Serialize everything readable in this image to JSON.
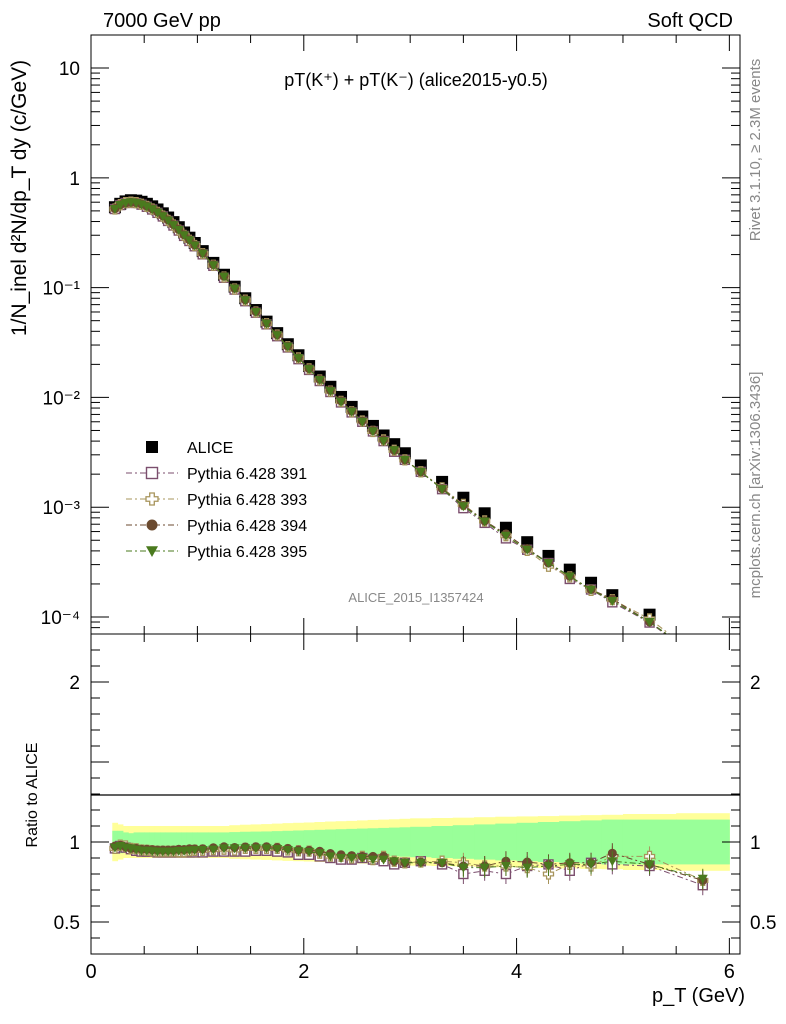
{
  "header": {
    "left": "7000 GeV pp",
    "right": "Soft QCD"
  },
  "side_text": {
    "rivet": "Rivet 3.1.10, ≥ 2.3M events",
    "mcplots": "mcplots.cern.ch [arXiv:1306.3436]"
  },
  "analysis_label": "ALICE_2015_I1357424",
  "chart_data": [
    {
      "type": "scatter",
      "panel": "main",
      "title": "pT(K⁺) + pT(K⁻) (alice2015-y0.5)",
      "ylabel": "1/N_inel d²N/dp_T dy (c/GeV)",
      "xlabel": "p_T (GeV)",
      "xlim": [
        0,
        6.1
      ],
      "ylim": [
        7e-05,
        20
      ],
      "yscale": "log",
      "x_ticks": [
        "0",
        "2",
        "4",
        "6"
      ],
      "y_ticks": [
        "10⁻⁴",
        "10⁻³",
        "10⁻²",
        "10⁻¹",
        "1",
        "10"
      ],
      "legend_position": "center-left",
      "x": [
        0.225,
        0.275,
        0.325,
        0.375,
        0.425,
        0.475,
        0.525,
        0.575,
        0.625,
        0.675,
        0.725,
        0.775,
        0.825,
        0.875,
        0.925,
        0.975,
        1.05,
        1.15,
        1.25,
        1.35,
        1.45,
        1.55,
        1.65,
        1.75,
        1.85,
        1.95,
        2.05,
        2.15,
        2.25,
        2.35,
        2.45,
        2.55,
        2.65,
        2.75,
        2.85,
        2.95,
        3.1,
        3.3,
        3.5,
        3.7,
        3.9,
        4.1,
        4.3,
        4.5,
        4.7,
        4.9,
        5.25,
        5.75
      ],
      "series": [
        {
          "name": "ALICE",
          "color": "#000000",
          "marker": "square-filled",
          "values": [
            0.54,
            0.58,
            0.61,
            0.625,
            0.62,
            0.605,
            0.58,
            0.55,
            0.515,
            0.475,
            0.435,
            0.395,
            0.355,
            0.318,
            0.285,
            0.255,
            0.215,
            0.168,
            0.131,
            0.102,
            0.08,
            0.0625,
            0.049,
            0.0385,
            0.0305,
            0.0242,
            0.0193,
            0.0155,
            0.0125,
            0.0101,
            0.0082,
            0.0067,
            0.0055,
            0.0045,
            0.00375,
            0.0031,
            0.0024,
            0.0017,
            0.00122,
            0.00088,
            0.00065,
            0.00048,
            0.00036,
            0.00027,
            0.000205,
            0.000158,
            0.000105,
            5.4e-05
          ]
        },
        {
          "name": "Pythia 6.428 391",
          "color": "#7B4E6D",
          "marker": "square-open",
          "values": [
            0.52,
            0.565,
            0.59,
            0.6,
            0.59,
            0.57,
            0.545,
            0.515,
            0.48,
            0.445,
            0.405,
            0.368,
            0.331,
            0.296,
            0.266,
            0.238,
            0.201,
            0.158,
            0.123,
            0.096,
            0.0752,
            0.0591,
            0.0463,
            0.0361,
            0.0285,
            0.0223,
            0.0178,
            0.0141,
            0.0112,
            0.009,
            0.0073,
            0.006,
            0.0049,
            0.004,
            0.0032,
            0.0027,
            0.0021,
            0.00146,
            0.00098,
            0.00072,
            0.00052,
            0.00041,
            0.00031,
            0.000222,
            0.000178,
            0.000136,
            8.9e-05,
            3.95e-05
          ]
        },
        {
          "name": "Pythia 6.428 393",
          "color": "#A7945B",
          "marker": "cross-open",
          "values": [
            0.52,
            0.57,
            0.595,
            0.6,
            0.594,
            0.575,
            0.55,
            0.52,
            0.485,
            0.448,
            0.41,
            0.372,
            0.334,
            0.299,
            0.27,
            0.242,
            0.204,
            0.16,
            0.125,
            0.097,
            0.077,
            0.06,
            0.047,
            0.037,
            0.029,
            0.0229,
            0.0182,
            0.0144,
            0.0114,
            0.0092,
            0.0074,
            0.0061,
            0.0049,
            0.0041,
            0.0033,
            0.0027,
            0.0021,
            0.0015,
            0.00106,
            0.00075,
            0.00055,
            0.000405,
            0.00029,
            0.000232,
            0.000175,
            0.000144,
            9.6e-05,
            4.1e-05
          ]
        },
        {
          "name": "Pythia 6.428 394",
          "color": "#6B4A2F",
          "marker": "circle-filled",
          "values": [
            0.525,
            0.57,
            0.59,
            0.6,
            0.595,
            0.578,
            0.553,
            0.523,
            0.489,
            0.451,
            0.413,
            0.375,
            0.339,
            0.303,
            0.273,
            0.244,
            0.206,
            0.162,
            0.127,
            0.0985,
            0.0775,
            0.0606,
            0.0475,
            0.0372,
            0.0293,
            0.023,
            0.0183,
            0.0146,
            0.0116,
            0.0093,
            0.0075,
            0.0061,
            0.005,
            0.0041,
            0.0033,
            0.0027,
            0.0021,
            0.00148,
            0.00104,
            0.00075,
            0.00057,
            0.00042,
            0.00031,
            0.000235,
            0.000178,
            0.000146,
            9e-05,
            4.1e-05
          ]
        },
        {
          "name": "Pythia 6.428 395",
          "color": "#4A7A1E",
          "marker": "triangle-down-filled",
          "values": [
            0.52,
            0.565,
            0.59,
            0.6,
            0.59,
            0.572,
            0.548,
            0.518,
            0.484,
            0.447,
            0.409,
            0.371,
            0.335,
            0.3,
            0.27,
            0.242,
            0.204,
            0.16,
            0.126,
            0.098,
            0.0768,
            0.06,
            0.047,
            0.0368,
            0.029,
            0.0228,
            0.0181,
            0.0144,
            0.0114,
            0.0091,
            0.0074,
            0.006,
            0.0049,
            0.004,
            0.0033,
            0.0027,
            0.0021,
            0.00146,
            0.00102,
            0.00074,
            0.00055,
            0.00041,
            0.00031,
            0.000234,
            0.000177,
            0.00014,
            9e-05,
            4.1e-05
          ]
        }
      ]
    },
    {
      "type": "scatter",
      "panel": "ratio",
      "ylabel": "Ratio to ALICE",
      "xlabel": "p_T (GeV)",
      "xlim": [
        0,
        6.1
      ],
      "ylim": [
        0.3,
        2.3
      ],
      "x_ticks": [
        "0",
        "2",
        "4",
        "6"
      ],
      "y_ticks": [
        "0.5",
        "1",
        "2"
      ],
      "band_x": [
        0.2,
        0.25,
        0.3,
        0.35,
        0.4,
        0.45,
        0.5,
        0.55,
        0.6,
        0.65,
        0.7,
        0.75,
        0.8,
        0.85,
        0.9,
        0.95,
        1.0,
        1.1,
        1.2,
        1.3,
        1.4,
        1.5,
        1.6,
        1.7,
        1.8,
        1.9,
        2.0,
        2.1,
        2.2,
        2.3,
        2.4,
        2.5,
        2.6,
        2.7,
        2.8,
        2.9,
        3.0,
        3.2,
        3.4,
        3.6,
        3.8,
        4.0,
        4.2,
        4.4,
        4.6,
        4.8,
        5.0,
        5.5,
        6.0
      ],
      "band_stat_syst": {
        "green_half_width": [
          0.07,
          0.07,
          0.06,
          0.055,
          0.06,
          0.06,
          0.06,
          0.06,
          0.06,
          0.06,
          0.06,
          0.06,
          0.06,
          0.06,
          0.06,
          0.06,
          0.06,
          0.06,
          0.06,
          0.062,
          0.064,
          0.065,
          0.066,
          0.068,
          0.07,
          0.072,
          0.074,
          0.076,
          0.078,
          0.08,
          0.082,
          0.084,
          0.086,
          0.088,
          0.09,
          0.092,
          0.095,
          0.1,
          0.105,
          0.11,
          0.115,
          0.12,
          0.125,
          0.13,
          0.135,
          0.14,
          0.14,
          0.14
        ],
        "yellow_half_width": [
          0.12,
          0.11,
          0.1,
          0.1,
          0.1,
          0.1,
          0.1,
          0.1,
          0.1,
          0.1,
          0.1,
          0.1,
          0.1,
          0.1,
          0.1,
          0.1,
          0.1,
          0.1,
          0.1,
          0.105,
          0.108,
          0.11,
          0.112,
          0.115,
          0.118,
          0.12,
          0.122,
          0.125,
          0.128,
          0.13,
          0.132,
          0.135,
          0.138,
          0.14,
          0.142,
          0.145,
          0.148,
          0.15,
          0.152,
          0.155,
          0.158,
          0.16,
          0.162,
          0.165,
          0.168,
          0.17,
          0.175,
          0.18
        ]
      },
      "series": [
        {
          "name": "Pythia 6.428 391",
          "color": "#7B4E6D",
          "marker": "square-open",
          "values": [
            0.96,
            0.975,
            0.965,
            0.955,
            0.945,
            0.94,
            0.94,
            0.94,
            0.935,
            0.935,
            0.935,
            0.935,
            0.935,
            0.935,
            0.935,
            0.935,
            0.935,
            0.94,
            0.94,
            0.94,
            0.94,
            0.945,
            0.945,
            0.94,
            0.935,
            0.92,
            0.92,
            0.91,
            0.9,
            0.89,
            0.89,
            0.9,
            0.89,
            0.88,
            0.86,
            0.87,
            0.88,
            0.86,
            0.8,
            0.82,
            0.8,
            0.85,
            0.86,
            0.82,
            0.87,
            0.86,
            0.85,
            0.73
          ]
        },
        {
          "name": "Pythia 6.428 393",
          "color": "#A7945B",
          "marker": "cross-open",
          "values": [
            0.96,
            0.98,
            0.975,
            0.96,
            0.958,
            0.95,
            0.948,
            0.945,
            0.942,
            0.942,
            0.942,
            0.942,
            0.94,
            0.94,
            0.945,
            0.948,
            0.948,
            0.952,
            0.955,
            0.95,
            0.96,
            0.96,
            0.96,
            0.96,
            0.95,
            0.945,
            0.943,
            0.93,
            0.912,
            0.91,
            0.9,
            0.91,
            0.89,
            0.91,
            0.88,
            0.87,
            0.875,
            0.88,
            0.87,
            0.85,
            0.85,
            0.84,
            0.8,
            0.86,
            0.85,
            0.91,
            0.91,
            0.76
          ]
        },
        {
          "name": "Pythia 6.428 394",
          "color": "#6B4A2F",
          "marker": "circle-filled",
          "values": [
            0.975,
            0.98,
            0.97,
            0.96,
            0.96,
            0.955,
            0.955,
            0.952,
            0.95,
            0.95,
            0.95,
            0.95,
            0.955,
            0.953,
            0.958,
            0.957,
            0.958,
            0.964,
            0.97,
            0.966,
            0.969,
            0.97,
            0.97,
            0.966,
            0.96,
            0.95,
            0.948,
            0.942,
            0.928,
            0.92,
            0.915,
            0.91,
            0.91,
            0.91,
            0.88,
            0.87,
            0.875,
            0.87,
            0.85,
            0.85,
            0.88,
            0.875,
            0.86,
            0.87,
            0.87,
            0.93,
            0.86,
            0.76
          ]
        },
        {
          "name": "Pythia 6.428 395",
          "color": "#4A7A1E",
          "marker": "triangle-down-filled",
          "values": [
            0.965,
            0.975,
            0.965,
            0.96,
            0.952,
            0.945,
            0.945,
            0.942,
            0.94,
            0.94,
            0.94,
            0.94,
            0.944,
            0.944,
            0.947,
            0.949,
            0.95,
            0.952,
            0.96,
            0.96,
            0.96,
            0.96,
            0.96,
            0.956,
            0.95,
            0.942,
            0.938,
            0.93,
            0.91,
            0.9,
            0.9,
            0.9,
            0.89,
            0.89,
            0.88,
            0.87,
            0.87,
            0.87,
            0.84,
            0.84,
            0.85,
            0.84,
            0.85,
            0.86,
            0.86,
            0.88,
            0.86,
            0.77
          ]
        }
      ]
    }
  ]
}
